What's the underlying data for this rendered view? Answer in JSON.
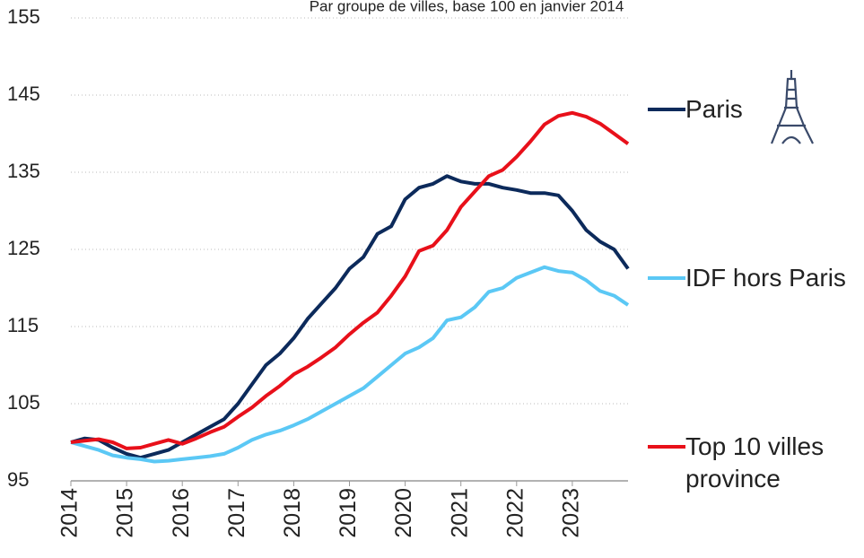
{
  "chart_data": {
    "type": "line",
    "subtitle": "Par groupe de villes, base 100 en janvier 2014",
    "x": [
      2014,
      2014.25,
      2014.5,
      2014.75,
      2015,
      2015.25,
      2015.5,
      2015.75,
      2016,
      2016.25,
      2016.5,
      2016.75,
      2017,
      2017.25,
      2017.5,
      2017.75,
      2018,
      2018.25,
      2018.5,
      2018.75,
      2019,
      2019.25,
      2019.5,
      2019.75,
      2020,
      2020.25,
      2020.5,
      2020.75,
      2021,
      2021.25,
      2021.5,
      2021.75,
      2022,
      2022.25,
      2022.5,
      2022.75,
      2023,
      2023.25,
      2023.5,
      2023.75,
      2024
    ],
    "series": [
      {
        "name": "Paris",
        "color": "#0c2a5b",
        "values": [
          100,
          100.5,
          100.3,
          99.3,
          98.5,
          98,
          98.5,
          99,
          100,
          101,
          102,
          103,
          105,
          107.5,
          110,
          111.5,
          113.5,
          116,
          118,
          120,
          122.5,
          124,
          127,
          128,
          131.5,
          133,
          133.5,
          134.5,
          133.8,
          133.5,
          133.5,
          133,
          132.7,
          132.3,
          132.3,
          132,
          130,
          127.5,
          126,
          125,
          122.5
        ]
      },
      {
        "name": "IDF hors Paris",
        "color": "#5bc8f5",
        "values": [
          100,
          99.5,
          99,
          98.3,
          98,
          97.8,
          97.5,
          97.6,
          97.8,
          98,
          98.2,
          98.5,
          99.3,
          100.3,
          101,
          101.5,
          102.2,
          103,
          104,
          105,
          106,
          107,
          108.5,
          110,
          111.5,
          112.3,
          113.5,
          115.8,
          116.2,
          117.5,
          119.5,
          120,
          121.3,
          122,
          122.7,
          122.2,
          122,
          121,
          119.6,
          119,
          117.8
        ]
      },
      {
        "name": "Top 10 villes province",
        "color": "#e8101a",
        "values": [
          100,
          100.2,
          100.4,
          100,
          99.2,
          99.3,
          99.8,
          100.3,
          99.8,
          100.5,
          101.3,
          102,
          103.3,
          104.5,
          106,
          107.3,
          108.8,
          109.8,
          111,
          112.3,
          114,
          115.5,
          116.8,
          119,
          121.5,
          124.8,
          125.5,
          127.5,
          130.5,
          132.5,
          134.5,
          135.3,
          137,
          139,
          141.2,
          142.3,
          142.7,
          142.2,
          141.3,
          140,
          138.7
        ]
      }
    ],
    "xlim": [
      2014,
      2024
    ],
    "xticks": [
      2014,
      2015,
      2016,
      2017,
      2018,
      2019,
      2020,
      2021,
      2022,
      2023
    ],
    "ylim": [
      95,
      155
    ],
    "yticks": [
      95,
      105,
      115,
      125,
      135,
      145,
      155
    ],
    "grid": true
  }
}
